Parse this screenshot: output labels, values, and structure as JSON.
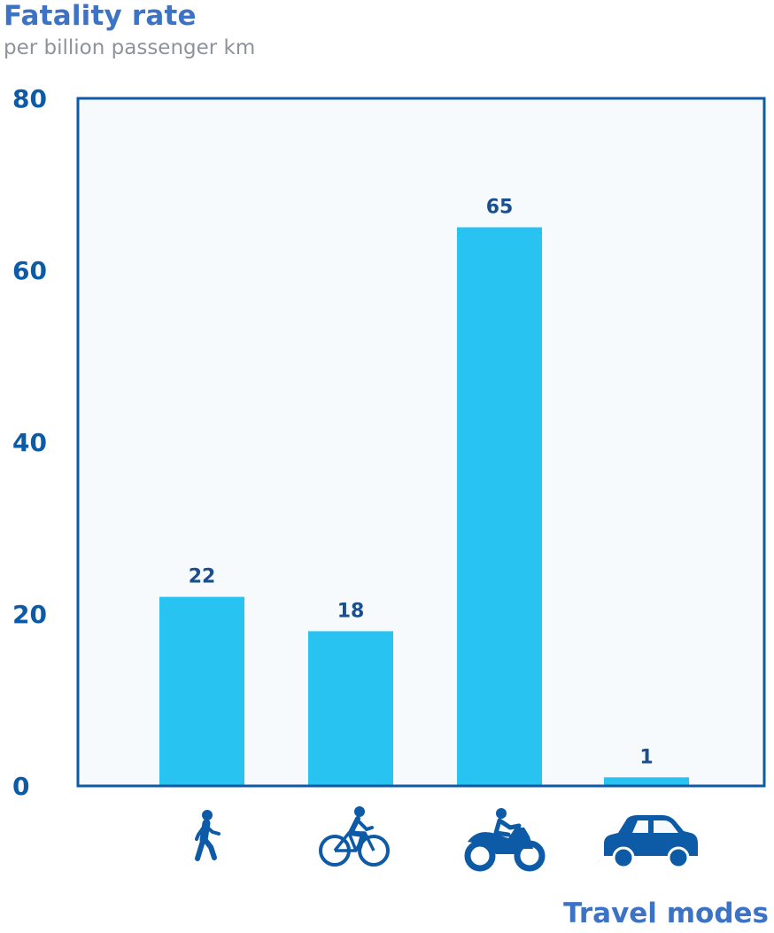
{
  "chart_data": {
    "type": "bar",
    "title": "Fatality rate",
    "subtitle": "per billion passenger km",
    "xlabel": "Travel modes",
    "ylabel": "",
    "ylim": [
      0,
      80
    ],
    "yticks": [
      0,
      20,
      40,
      60,
      80
    ],
    "categories": [
      "walking-icon",
      "cycling-icon",
      "motorcycle-icon",
      "car-icon"
    ],
    "values": [
      22,
      18,
      65,
      1
    ],
    "data_labels": [
      "22",
      "18",
      "65",
      "1"
    ],
    "grid": false,
    "legend": "none"
  },
  "colors": {
    "bar": "#29c3f2",
    "plot_background": "#f6fafd",
    "plot_border": "#0d5aa6",
    "icon": "#0d5aa6",
    "tick_text": "#0d5aa6",
    "title": "#3d73c4",
    "subtitle": "#8f9399"
  }
}
